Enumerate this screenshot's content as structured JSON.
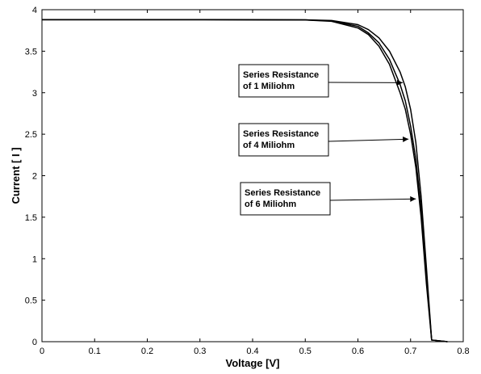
{
  "chart_data": {
    "type": "line",
    "title": "",
    "xlabel": "Voltage [V]",
    "ylabel": "Current [ I ]",
    "xlim": [
      0,
      0.8
    ],
    "ylim": [
      0,
      4
    ],
    "xticks": [
      "0",
      "0.1",
      "0.2",
      "0.3",
      "0.4",
      "0.5",
      "0.6",
      "0.7",
      "0.8"
    ],
    "yticks": [
      "0",
      "0.5",
      "1",
      "1.5",
      "2",
      "2.5",
      "3",
      "3.5",
      "4"
    ],
    "grid": false,
    "series": [
      {
        "name": "Series Resistance of 1 Miliohm",
        "x": [
          0,
          0.3,
          0.5,
          0.55,
          0.6,
          0.62,
          0.64,
          0.66,
          0.68,
          0.69,
          0.7,
          0.71,
          0.72,
          0.73,
          0.74,
          0.77
        ],
        "y": [
          3.88,
          3.88,
          3.878,
          3.87,
          3.82,
          3.76,
          3.66,
          3.5,
          3.25,
          3.07,
          2.8,
          2.4,
          1.75,
          0.9,
          0.02,
          0
        ]
      },
      {
        "name": "Series Resistance of 4 Miliohm",
        "x": [
          0,
          0.3,
          0.5,
          0.55,
          0.6,
          0.62,
          0.64,
          0.66,
          0.68,
          0.69,
          0.7,
          0.71,
          0.72,
          0.73,
          0.74,
          0.77
        ],
        "y": [
          3.88,
          3.88,
          3.877,
          3.865,
          3.8,
          3.72,
          3.6,
          3.4,
          3.1,
          2.9,
          2.6,
          2.2,
          1.6,
          0.8,
          0.02,
          0
        ]
      },
      {
        "name": "Series Resistance of 6 Miliohm",
        "x": [
          0,
          0.3,
          0.5,
          0.55,
          0.6,
          0.62,
          0.64,
          0.66,
          0.68,
          0.69,
          0.7,
          0.71,
          0.72,
          0.73,
          0.74,
          0.77
        ],
        "y": [
          3.88,
          3.88,
          3.876,
          3.86,
          3.78,
          3.7,
          3.56,
          3.34,
          3.0,
          2.8,
          2.5,
          2.1,
          1.5,
          0.7,
          0.02,
          0
        ]
      }
    ],
    "annotations": [
      {
        "lines": [
          "Series Resistance",
          "of 1 Miliohm"
        ],
        "arrow_to": [
          0.685,
          3.12
        ]
      },
      {
        "lines": [
          "Series Resistance",
          "of 4 Miliohm"
        ],
        "arrow_to": [
          0.696,
          2.44
        ]
      },
      {
        "lines": [
          "Series Resistance",
          "of 6 Miliohm"
        ],
        "arrow_to": [
          0.71,
          1.72
        ]
      }
    ]
  },
  "colors": {
    "line": "#000000",
    "background": "#ffffff"
  }
}
